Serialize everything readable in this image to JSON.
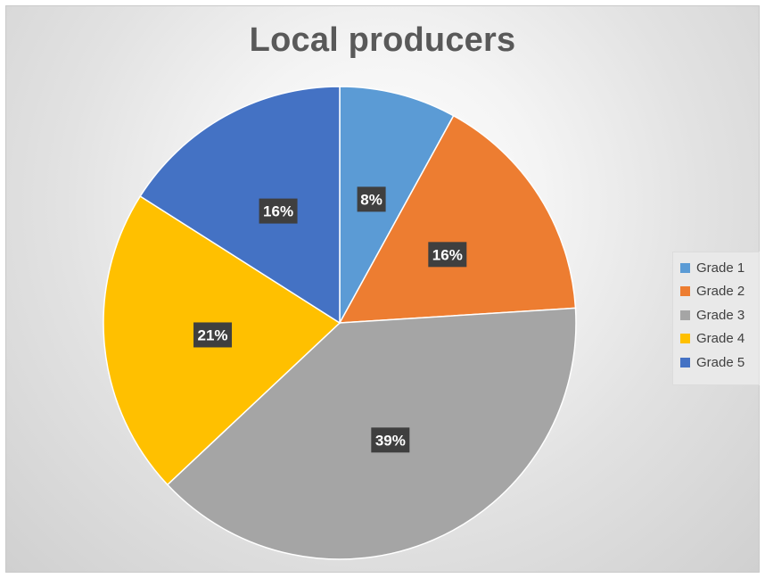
{
  "chart_data": {
    "type": "pie",
    "title": "Local producers",
    "categories": [
      "Grade 1",
      "Grade 2",
      "Grade 3",
      "Grade 4",
      "Grade 5"
    ],
    "values": [
      8,
      16,
      39,
      21,
      16
    ],
    "data_labels": [
      "8%",
      "16%",
      "39%",
      "21%",
      "16%"
    ],
    "colors": [
      "#5b9bd5",
      "#ed7d31",
      "#a5a5a5",
      "#ffc000",
      "#4472c4"
    ],
    "legend_position": "right",
    "start_angle": "12 o'clock, clockwise"
  },
  "legend": {
    "items": [
      {
        "label": "Grade 1",
        "color": "#5b9bd5"
      },
      {
        "label": "Grade 2",
        "color": "#ed7d31"
      },
      {
        "label": "Grade 3",
        "color": "#a5a5a5"
      },
      {
        "label": "Grade 4",
        "color": "#ffc000"
      },
      {
        "label": "Grade 5",
        "color": "#4472c4"
      }
    ]
  }
}
